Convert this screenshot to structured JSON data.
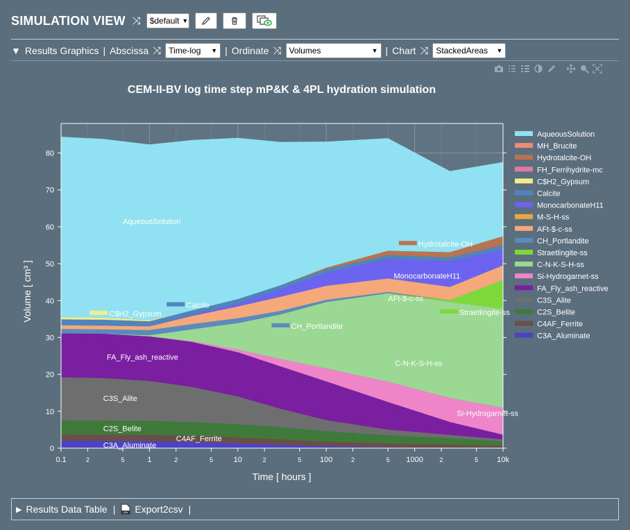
{
  "header": {
    "title": "SIMULATION VIEW",
    "selected": "$default"
  },
  "toolbar": {
    "results_graphics": "Results Graphics",
    "abscissa_label": "Abscissa",
    "abscissa_value": "Time-log",
    "ordinate_label": "Ordinate",
    "ordinate_value": "Volumes",
    "chart_label": "Chart",
    "chart_value": "StackedAreas"
  },
  "bottom": {
    "data_table": "Results Data Table",
    "export": "Export2csv",
    "csv_icon": "csv"
  },
  "chart_data": {
    "type": "area",
    "title": "CEM-II-BV log time step mP&K & 4PL hydration simulation",
    "xlabel": "Time [ hours ]",
    "ylabel": "Volume [ cm³ ]",
    "xscale": "log",
    "xlim": [
      0.1,
      10000
    ],
    "ylim": [
      0,
      88
    ],
    "grid": true,
    "legend_position": "right",
    "x": [
      0.1,
      0.3,
      1,
      3,
      10,
      30,
      100,
      500,
      2500,
      10000
    ],
    "yticks": [
      "0",
      "10",
      "20",
      "30",
      "40",
      "50",
      "60",
      "70",
      "80"
    ],
    "xticks": [
      {
        "v": 0.1,
        "l": "0.1",
        "major": true
      },
      {
        "v": 0.2,
        "l": "2",
        "major": false
      },
      {
        "v": 0.5,
        "l": "5",
        "major": false
      },
      {
        "v": 1,
        "l": "1",
        "major": true
      },
      {
        "v": 2,
        "l": "2",
        "major": false
      },
      {
        "v": 5,
        "l": "5",
        "major": false
      },
      {
        "v": 10,
        "l": "10",
        "major": true
      },
      {
        "v": 20,
        "l": "2",
        "major": false
      },
      {
        "v": 50,
        "l": "5",
        "major": false
      },
      {
        "v": 100,
        "l": "100",
        "major": true
      },
      {
        "v": 200,
        "l": "2",
        "major": false
      },
      {
        "v": 500,
        "l": "5",
        "major": false
      },
      {
        "v": 1000,
        "l": "1000",
        "major": true
      },
      {
        "v": 2000,
        "l": "2",
        "major": false
      },
      {
        "v": 5000,
        "l": "5",
        "major": false
      },
      {
        "v": 10000,
        "l": "10k",
        "major": true
      }
    ],
    "series": [
      {
        "name": "C3A_Aluminate",
        "color": "#4c43c2",
        "values": [
          2.0,
          2.0,
          1.9,
          1.7,
          1.3,
          0.9,
          0.5,
          0.2,
          0.1,
          0.05
        ]
      },
      {
        "name": "C4AF_Ferrite",
        "color": "#6a4e48",
        "values": [
          1.7,
          1.7,
          1.7,
          1.7,
          1.6,
          1.5,
          1.3,
          1.1,
          0.9,
          0.6
        ]
      },
      {
        "name": "C2S_Belite",
        "color": "#3f7a3a",
        "values": [
          3.8,
          3.8,
          3.8,
          3.7,
          3.6,
          3.3,
          2.8,
          2.2,
          1.7,
          1.2
        ]
      },
      {
        "name": "C3S_Alite",
        "color": "#6e6e6e",
        "values": [
          11.7,
          11.5,
          10.8,
          9.5,
          7.5,
          5.0,
          3.0,
          1.5,
          0.9,
          0.5
        ]
      },
      {
        "name": "FA_Fly_ash_reactive",
        "color": "#7a1fa0",
        "values": [
          11.9,
          12.0,
          12.1,
          12.2,
          12.0,
          11.5,
          10.5,
          7.5,
          3.5,
          1.3
        ]
      },
      {
        "name": "Si-Hydrogarnet-ss",
        "color": "#ed85c8",
        "values": [
          0.0,
          0.0,
          0.0,
          0.2,
          0.7,
          2.0,
          3.5,
          5.5,
          6.5,
          7.3
        ]
      },
      {
        "name": "C-N-K-S-H-ss",
        "color": "#9bd893",
        "values": [
          0.0,
          0.0,
          0.3,
          3.2,
          7.2,
          12.0,
          18.0,
          24.0,
          26.0,
          26.8
        ]
      },
      {
        "name": "Straetlingite-ss",
        "color": "#7dd93a",
        "values": [
          0.0,
          0.0,
          0.0,
          0.0,
          0.0,
          0.0,
          0.0,
          0.0,
          0.5,
          7.8
        ]
      },
      {
        "name": "CH_Portlandite",
        "color": "#5b8bbd",
        "values": [
          1.2,
          1.2,
          1.4,
          1.4,
          1.3,
          1.0,
          0.6,
          0.3,
          0.0,
          0.0
        ]
      },
      {
        "name": "AFt-$-c-ss",
        "color": "#f5a97b",
        "values": [
          1.0,
          1.0,
          1.0,
          2.2,
          3.2,
          3.8,
          3.8,
          3.7,
          3.6,
          4.0
        ]
      },
      {
        "name": "M-S-H-ss",
        "color": "#e9a746",
        "values": [
          0.0,
          0.0,
          0.0,
          0.0,
          0.0,
          0.0,
          0.0,
          0.0,
          0.0,
          0.0
        ]
      },
      {
        "name": "MonocarbonateH11",
        "color": "#6c63f0",
        "values": [
          0.0,
          0.0,
          0.0,
          0.2,
          0.8,
          2.0,
          3.5,
          5.3,
          7.0,
          4.3
        ]
      },
      {
        "name": "Calcite",
        "color": "#4f84bd",
        "values": [
          1.6,
          1.6,
          1.4,
          1.3,
          1.2,
          1.1,
          1.0,
          1.0,
          1.0,
          1.2
        ]
      },
      {
        "name": "C$H2_Gypsum",
        "color": "#f2ee8c",
        "values": [
          0.6,
          0.6,
          0.3,
          0.0,
          0.0,
          0.0,
          0.0,
          0.0,
          0.0,
          0.0
        ]
      },
      {
        "name": "FH_Ferrihydrite-mc",
        "color": "#e27aa0",
        "values": [
          0.0,
          0.0,
          0.0,
          0.0,
          0.0,
          0.0,
          0.0,
          0.0,
          0.0,
          0.0
        ]
      },
      {
        "name": "Hydrotalcite-OH",
        "color": "#b8734f",
        "values": [
          0.0,
          0.0,
          0.0,
          0.0,
          0.0,
          0.0,
          0.4,
          1.2,
          1.4,
          2.4
        ]
      },
      {
        "name": "MH_Brucite",
        "color": "#ef8a7a",
        "values": [
          0.0,
          0.0,
          0.0,
          0.0,
          0.0,
          0.0,
          0.0,
          0.0,
          0.0,
          0.0
        ]
      },
      {
        "name": "AqueousSolution",
        "color": "#90e2f2",
        "values": [
          48.9,
          48.4,
          47.6,
          46.2,
          43.7,
          38.9,
          34.2,
          30.5,
          22.0,
          20.1
        ]
      }
    ],
    "labels": [
      {
        "text": "AqueousSolution",
        "x": 0.5,
        "y": 61.5
      },
      {
        "text": "Calcite",
        "x": 2.6,
        "y": 38.8,
        "swatch": "#4f84bd"
      },
      {
        "text": "C$H2_Gypsum",
        "x": 0.35,
        "y": 36.5,
        "swatch": "#f2ee8c"
      },
      {
        "text": "CH_Portlandite",
        "x": 40,
        "y": 33.1,
        "swatch": "#5b8bbd"
      },
      {
        "text": "FA_Fly_ash_reactive",
        "x": 0.33,
        "y": 24.7
      },
      {
        "text": "C3S_Alite",
        "x": 0.3,
        "y": 13.5
      },
      {
        "text": "C2S_Belite",
        "x": 0.3,
        "y": 5.4
      },
      {
        "text": "C4AF_Ferrite",
        "x": 2.0,
        "y": 2.6
      },
      {
        "text": "C3A_Aluminate",
        "x": 0.3,
        "y": 0.8
      },
      {
        "text": "Hydrotalcite-OH",
        "x": 1100,
        "y": 55.4,
        "swatch": "#b8734f"
      },
      {
        "text": "MonocarbonateH11",
        "x": 580,
        "y": 46.7
      },
      {
        "text": "AFt-$-c-ss",
        "x": 500,
        "y": 40.6
      },
      {
        "text": "Straetlingite-ss",
        "x": 3200,
        "y": 36.9,
        "swatch": "#7dd93a"
      },
      {
        "text": "C-N-K-S-H-ss",
        "x": 600,
        "y": 23.0
      },
      {
        "text": "Si-Hydrogarnet-ss",
        "x": 3000,
        "y": 9.5
      }
    ]
  }
}
